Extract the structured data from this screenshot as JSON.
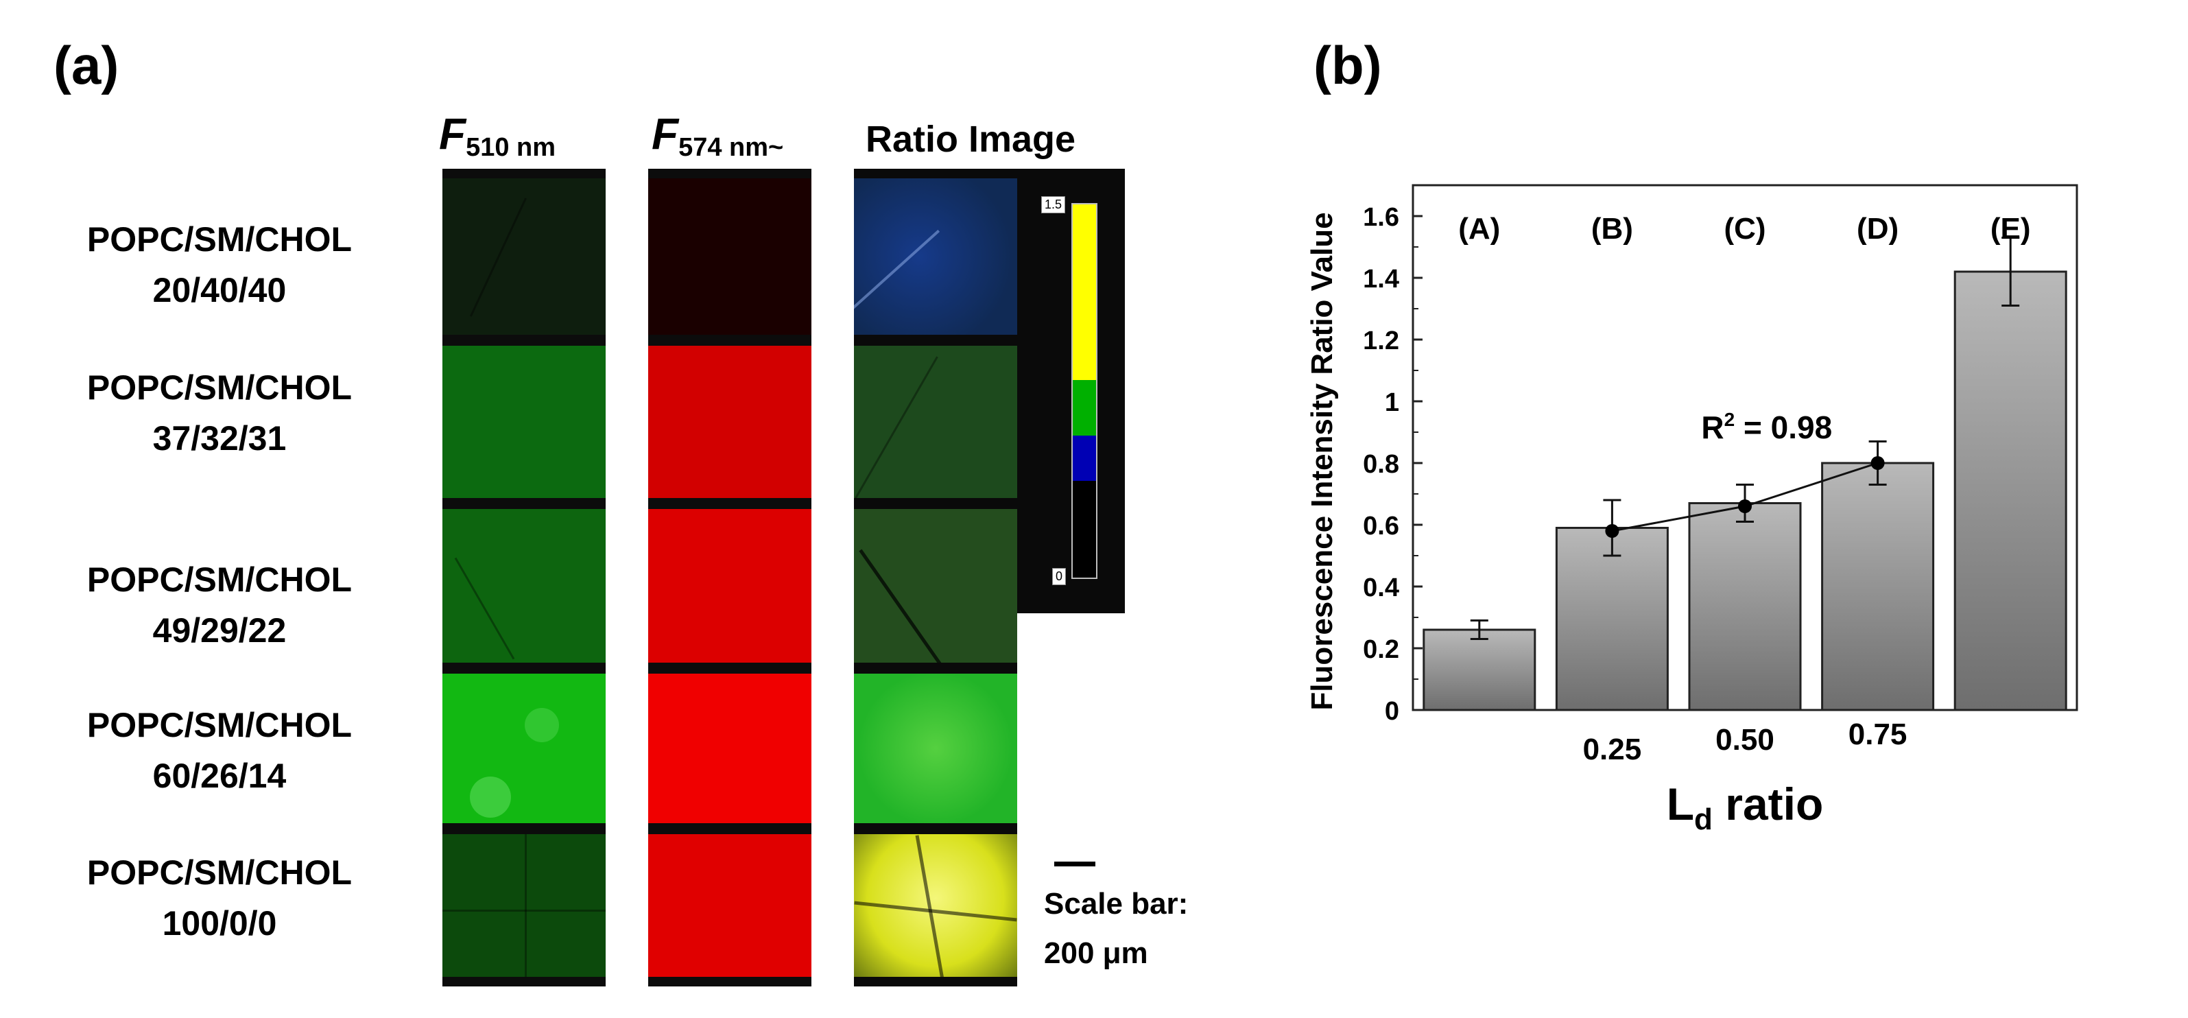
{
  "panel_a": {
    "label": "(a)",
    "column_headers": [
      {
        "main": "F",
        "sub": "510 nm"
      },
      {
        "main": "F",
        "sub": "574 nm~"
      },
      {
        "main": "Ratio Image",
        "sub": ""
      }
    ],
    "rows": [
      {
        "name": "POPC/SM/CHOL",
        "ratio": "20/40/40"
      },
      {
        "name": "POPC/SM/CHOL",
        "ratio": "37/32/31"
      },
      {
        "name": "POPC/SM/CHOL",
        "ratio": "49/29/22"
      },
      {
        "name": "POPC/SM/CHOL",
        "ratio": "60/26/14"
      },
      {
        "name": "POPC/SM/CHOL",
        "ratio": "100/0/0"
      }
    ],
    "colorbar": {
      "max_label": "1.5",
      "min_label": "0",
      "bands": [
        "#ffff00",
        "#00b000",
        "#0000b4",
        "#000000"
      ]
    },
    "scale_bar": {
      "line1": "Scale bar:",
      "line2": "200 μm"
    },
    "colors": {
      "green": [
        "#0e1e0e",
        "#0c6a10",
        "#0d650f",
        "#12b812",
        "#0c4a0c"
      ],
      "red": [
        "#1a0000",
        "#d20000",
        "#dc0000",
        "#f00000",
        "#e00000"
      ],
      "ratio": [
        "#102a55",
        "#1d4a1d",
        "#244d1e",
        "#22b428",
        "#d8e01c"
      ]
    }
  },
  "chart_data": {
    "type": "bar",
    "panel_label": "(b)",
    "categories": [
      "(A)",
      "(B)",
      "(C)",
      "(D)",
      "(E)"
    ],
    "values": [
      0.26,
      0.59,
      0.67,
      0.8,
      1.42
    ],
    "errors": [
      0.03,
      0.09,
      0.06,
      0.07,
      0.11
    ],
    "x_tick_labels": [
      "",
      "0.25",
      "0.50",
      "0.75",
      ""
    ],
    "xlabel_main": "L",
    "xlabel_sub": "d",
    "xlabel_rest": " ratio",
    "ylabel": "Fluorescence Intensity Ratio Value",
    "ylim": [
      0,
      1.7
    ],
    "y_ticks": [
      0,
      0.2,
      0.4,
      0.6,
      0.8,
      1,
      1.2,
      1.4,
      1.6
    ],
    "y_tick_labels": [
      "0",
      "0.2",
      "0.4",
      "0.6",
      "0.8",
      "1",
      "1.2",
      "1.4",
      "1.6"
    ],
    "fit_line": {
      "points": [
        [
          1,
          0.58
        ],
        [
          2,
          0.66
        ],
        [
          3,
          0.8
        ]
      ]
    },
    "annotation": {
      "main": "R",
      "sup": "2",
      "rest": " = 0.98"
    }
  }
}
